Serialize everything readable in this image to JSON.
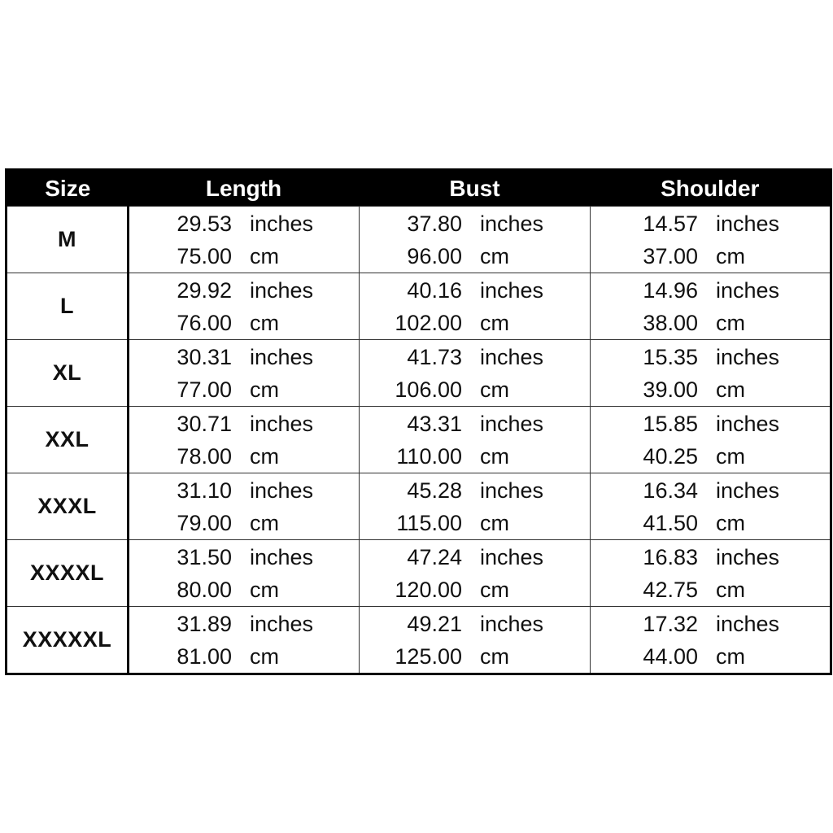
{
  "table": {
    "headers": {
      "size": "Size",
      "length": "Length",
      "bust": "Bust",
      "shoulder": "Shoulder"
    },
    "rows": [
      {
        "size": "M",
        "length": {
          "inches": "29.53",
          "inches_unit": "inches",
          "cm": "75.00",
          "cm_unit": "cm"
        },
        "bust": {
          "inches": "37.80",
          "inches_unit": "inches",
          "cm": "96.00",
          "cm_unit": "cm"
        },
        "shoulder": {
          "inches": "14.57",
          "inches_unit": "inches",
          "cm": "37.00",
          "cm_unit": "cm"
        }
      },
      {
        "size": "L",
        "length": {
          "inches": "29.92",
          "inches_unit": "inches",
          "cm": "76.00",
          "cm_unit": "cm"
        },
        "bust": {
          "inches": "40.16",
          "inches_unit": "inches",
          "cm": "102.00",
          "cm_unit": "cm"
        },
        "shoulder": {
          "inches": "14.96",
          "inches_unit": "inches",
          "cm": "38.00",
          "cm_unit": "cm"
        }
      },
      {
        "size": "XL",
        "length": {
          "inches": "30.31",
          "inches_unit": "inches",
          "cm": "77.00",
          "cm_unit": "cm"
        },
        "bust": {
          "inches": "41.73",
          "inches_unit": "inches",
          "cm": "106.00",
          "cm_unit": "cm"
        },
        "shoulder": {
          "inches": "15.35",
          "inches_unit": "inches",
          "cm": "39.00",
          "cm_unit": "cm"
        }
      },
      {
        "size": "XXL",
        "length": {
          "inches": "30.71",
          "inches_unit": "inches",
          "cm": "78.00",
          "cm_unit": "cm"
        },
        "bust": {
          "inches": "43.31",
          "inches_unit": "inches",
          "cm": "110.00",
          "cm_unit": "cm"
        },
        "shoulder": {
          "inches": "15.85",
          "inches_unit": "inches",
          "cm": "40.25",
          "cm_unit": "cm"
        }
      },
      {
        "size": "XXXL",
        "length": {
          "inches": "31.10",
          "inches_unit": "inches",
          "cm": "79.00",
          "cm_unit": "cm"
        },
        "bust": {
          "inches": "45.28",
          "inches_unit": "inches",
          "cm": "115.00",
          "cm_unit": "cm"
        },
        "shoulder": {
          "inches": "16.34",
          "inches_unit": "inches",
          "cm": "41.50",
          "cm_unit": "cm"
        }
      },
      {
        "size": "XXXXL",
        "length": {
          "inches": "31.50",
          "inches_unit": "inches",
          "cm": "80.00",
          "cm_unit": "cm"
        },
        "bust": {
          "inches": "47.24",
          "inches_unit": "inches",
          "cm": "120.00",
          "cm_unit": "cm"
        },
        "shoulder": {
          "inches": "16.83",
          "inches_unit": "inches",
          "cm": "42.75",
          "cm_unit": "cm"
        }
      },
      {
        "size": "XXXXXL",
        "length": {
          "inches": "31.89",
          "inches_unit": "inches",
          "cm": "81.00",
          "cm_unit": "cm"
        },
        "bust": {
          "inches": "49.21",
          "inches_unit": "inches",
          "cm": "125.00",
          "cm_unit": "cm"
        },
        "shoulder": {
          "inches": "17.32",
          "inches_unit": "inches",
          "cm": "44.00",
          "cm_unit": "cm"
        }
      }
    ]
  },
  "colors": {
    "header_background": "#000000",
    "header_text": "#ffffff",
    "body_text": "#111111",
    "grid_lines": "#333333"
  }
}
